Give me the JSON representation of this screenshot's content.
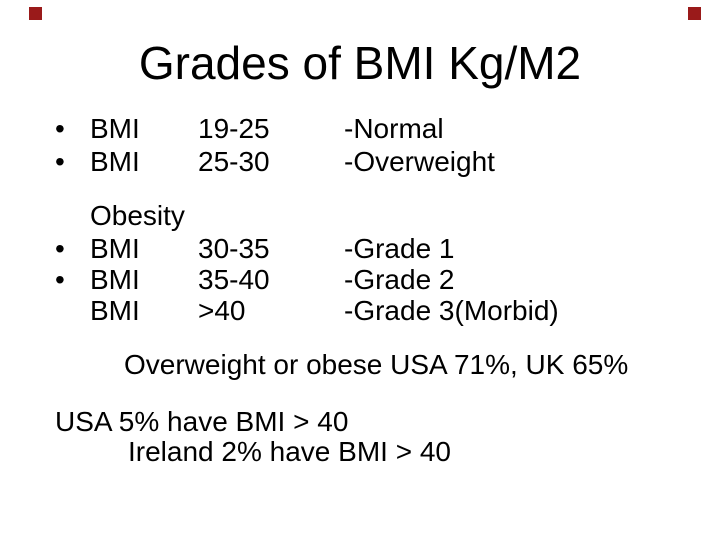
{
  "slide": {
    "title": "Grades of BMI Kg/M2",
    "decor": {
      "color": "#9a1a1a"
    },
    "rows": [
      {
        "bullet": "•",
        "label": "BMI",
        "range": "19-25",
        "desc": "-Normal"
      },
      {
        "bullet": "•",
        "label": "BMI",
        "range": "25-30",
        "desc": "-Overweight"
      },
      {
        "bullet": "",
        "label": "Obesity",
        "range": "",
        "desc": ""
      },
      {
        "bullet": "•",
        "label": "BMI",
        "range": "30-35",
        "desc": "-Grade 1"
      },
      {
        "bullet": "•",
        "label": "BMI",
        "range": "35-40",
        "desc": "-Grade 2"
      },
      {
        "bullet": "",
        "label": "BMI",
        "range": ">40",
        "desc": "-Grade 3(Morbid)"
      }
    ],
    "summary": "Overweight or obese USA 71%, UK 65%",
    "footnotes": [
      "USA 5% have BMI > 40",
      "Ireland 2% have BMI > 40"
    ]
  }
}
